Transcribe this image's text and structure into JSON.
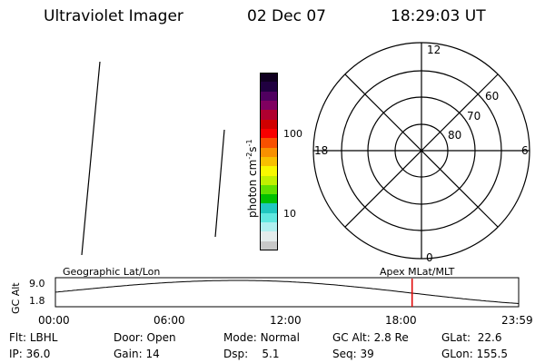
{
  "header": {
    "instrument": "Ultraviolet Imager",
    "date": "02 Dec 07",
    "time": "18:29:03 UT"
  },
  "colorbar": {
    "label": "photon cm",
    "exp1": "-2",
    "mid": "s",
    "exp2": "-1",
    "tick_100": "100",
    "tick_10": "10",
    "colors": [
      "#c8c8c8",
      "#e4ecec",
      "#b0f0f0",
      "#60e8e0",
      "#20c8c0",
      "#00c000",
      "#60e000",
      "#c0f000",
      "#f8f800",
      "#f8c000",
      "#f89000",
      "#f85000",
      "#f80000",
      "#d00000",
      "#b00030",
      "#800060",
      "#500060",
      "#200040",
      "#100020"
    ]
  },
  "polar": {
    "mlt_top": "12",
    "mlt_bottom": "0",
    "mlt_left": "18",
    "mlt_right": "6",
    "lat_60": "60",
    "lat_70": "70",
    "lat_80": "80"
  },
  "alt_panel": {
    "ylabel": "GC Alt",
    "y_top": "9.0",
    "y_bottom": "1.8",
    "left_title": "Geographic Lat/Lon",
    "right_title": "Apex MLat/MLT",
    "marker_hour": 18.48,
    "x_ticks": [
      "00:00",
      "06:00",
      "12:00",
      "18:00",
      "23:59"
    ]
  },
  "status": {
    "filter_label": "Flt:",
    "filter_value": "LBHL",
    "ip_label": "IP:",
    "ip_value": "36.0",
    "door_label": "Door:",
    "door_value": "Open",
    "gain_label": "Gain:",
    "gain_value": "14",
    "mode_label": "Mode:",
    "mode_value": "Normal",
    "dsp_label": "Dsp:",
    "dsp_value": "5.1",
    "gcalt_label": "GC Alt:",
    "gcalt_value": "2.8 Re",
    "seq_label": "Seq:",
    "seq_value": "39",
    "glat_label": "GLat:",
    "glat_value": "22.6",
    "glon_label": "GLon:",
    "glon_value": "155.5"
  }
}
